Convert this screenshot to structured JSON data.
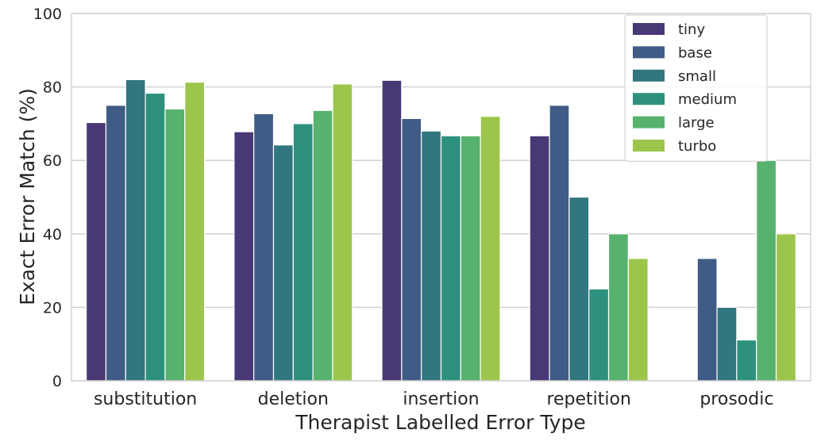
{
  "chart_data": {
    "type": "bar",
    "title": "",
    "xlabel": "Therapist Labelled Error Type",
    "ylabel": "Exact Error Match (%)",
    "ylim": [
      0,
      100
    ],
    "yticks": [
      0,
      20,
      40,
      60,
      80,
      100
    ],
    "grid": true,
    "legend_position": "top-right",
    "categories": [
      "substitution",
      "deletion",
      "insertion",
      "repetition",
      "prosodic"
    ],
    "series": [
      {
        "name": "tiny",
        "color": "#483875",
        "values": [
          70.3,
          67.8,
          81.8,
          66.7,
          0
        ]
      },
      {
        "name": "base",
        "color": "#3e5c86",
        "values": [
          75.0,
          72.7,
          71.4,
          75.0,
          33.3
        ]
      },
      {
        "name": "small",
        "color": "#32767f",
        "values": [
          82.0,
          64.2,
          68.0,
          50.0,
          20.0
        ]
      },
      {
        "name": "medium",
        "color": "#2d917d",
        "values": [
          78.3,
          70.0,
          66.7,
          25.0,
          11.1
        ]
      },
      {
        "name": "large",
        "color": "#57b26d",
        "values": [
          74.0,
          73.6,
          66.7,
          40.0,
          60.0
        ]
      },
      {
        "name": "turbo",
        "color": "#9cc64b",
        "values": [
          81.3,
          80.8,
          72.0,
          33.3,
          40.0
        ]
      }
    ]
  }
}
